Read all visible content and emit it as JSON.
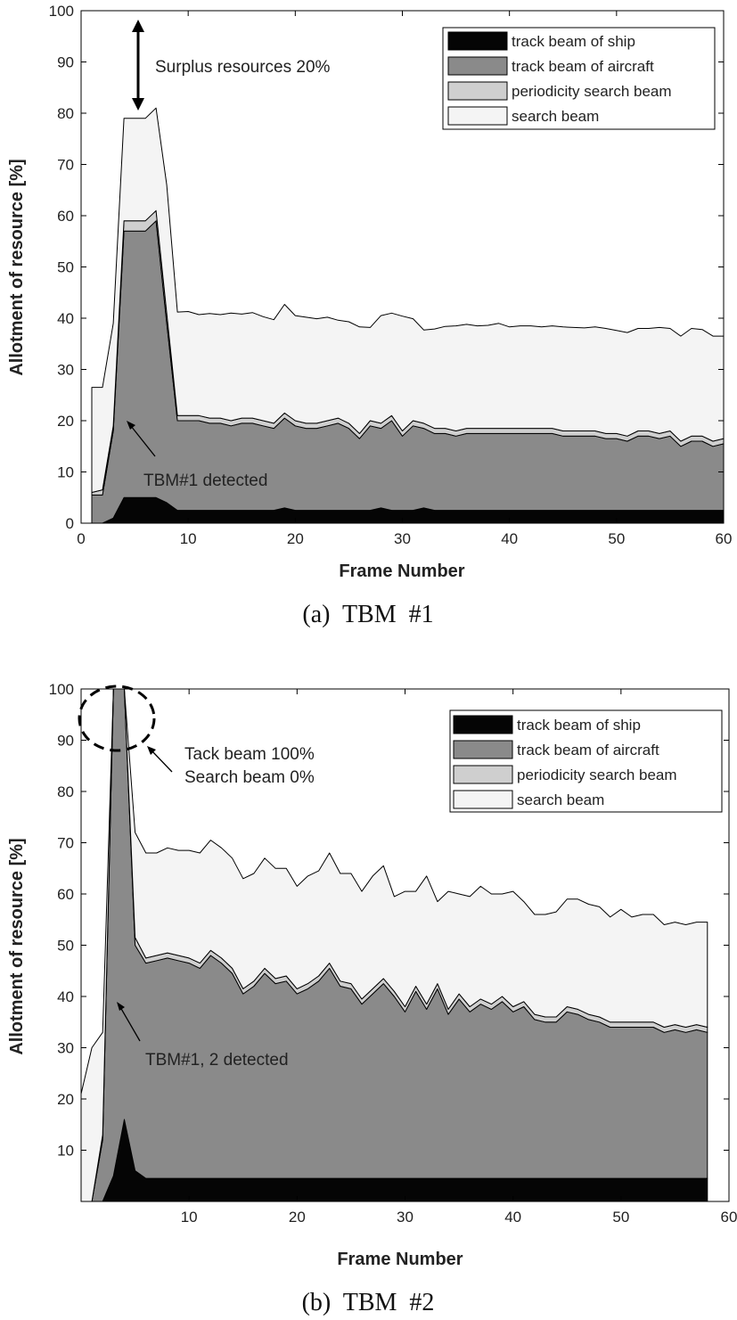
{
  "chart_data": [
    {
      "type": "area",
      "stacked": true,
      "caption": "(a)  TBM  #1",
      "xlabel": "Frame Number",
      "ylabel": "Allotment of resource [%]",
      "xlim": [
        0,
        60
      ],
      "ylim": [
        0,
        100
      ],
      "xticks": [
        0,
        10,
        20,
        30,
        40,
        50,
        60
      ],
      "yticks": [
        0,
        10,
        20,
        30,
        40,
        50,
        60,
        70,
        80,
        90,
        100
      ],
      "grid": false,
      "legend_position": "top-right",
      "x": [
        1,
        2,
        3,
        4,
        5,
        6,
        7,
        8,
        9,
        10,
        11,
        12,
        13,
        14,
        15,
        16,
        17,
        18,
        19,
        20,
        21,
        22,
        23,
        24,
        25,
        26,
        27,
        28,
        29,
        30,
        31,
        32,
        33,
        34,
        35,
        36,
        37,
        38,
        39,
        40,
        41,
        42,
        43,
        44,
        45,
        46,
        47,
        48,
        49,
        50,
        51,
        52,
        53,
        54,
        55,
        56,
        57,
        58,
        59,
        60
      ],
      "series": [
        {
          "name": "track beam of ship",
          "color": "#050505",
          "values": [
            0,
            0,
            1,
            5,
            5,
            5,
            5,
            4,
            2.5,
            2.5,
            2.5,
            2.5,
            2.5,
            2.5,
            2.5,
            2.5,
            2.5,
            2.5,
            3,
            2.5,
            2.5,
            2.5,
            2.5,
            2.5,
            2.5,
            2.5,
            2.5,
            3,
            2.5,
            2.5,
            2.5,
            3,
            2.5,
            2.5,
            2.5,
            2.5,
            2.5,
            2.5,
            2.5,
            2.5,
            2.5,
            2.5,
            2.5,
            2.5,
            2.5,
            2.5,
            2.5,
            2.5,
            2.5,
            2.5,
            2.5,
            2.5,
            2.5,
            2.5,
            2.5,
            2.5,
            2.5,
            2.5,
            2.5,
            2.5
          ]
        },
        {
          "name": "track beam of aircraft",
          "color": "#8a8a8a",
          "values": [
            5.5,
            5.5,
            17,
            52,
            52,
            52,
            54,
            35,
            17.5,
            17.5,
            17.5,
            17,
            17,
            16.5,
            17,
            17,
            16.5,
            16,
            17.5,
            16.5,
            16,
            16,
            16.5,
            17,
            16,
            14,
            16.5,
            15.5,
            17.5,
            14.5,
            16.5,
            15.5,
            15,
            15,
            14.5,
            15,
            15,
            15,
            15,
            15,
            15,
            15,
            15,
            15,
            14.5,
            14.5,
            14.5,
            14.5,
            14,
            14,
            13.5,
            14.5,
            14.5,
            14,
            14.5,
            12.5,
            13.5,
            13.5,
            12.5,
            13
          ]
        },
        {
          "name": "periodicity search beam",
          "color": "#cfcfcf",
          "values": [
            0.5,
            1,
            1,
            2,
            2,
            2,
            2,
            2,
            1,
            1,
            1,
            1,
            1,
            1,
            1,
            1,
            1,
            1,
            1,
            1,
            1,
            1,
            1,
            1,
            1,
            1,
            1,
            1,
            1,
            1,
            1,
            1,
            1,
            1,
            1,
            1,
            1,
            1,
            1,
            1,
            1,
            1,
            1,
            1,
            1,
            1,
            1,
            1,
            1,
            1,
            1,
            1,
            1,
            1,
            1,
            1,
            1,
            1,
            1,
            1
          ]
        },
        {
          "name": "search beam",
          "color": "#f4f4f4",
          "values": [
            20.5,
            20,
            20,
            20,
            20,
            20,
            20,
            25,
            20.2,
            20.3,
            19.7,
            20.4,
            20.2,
            21,
            20.3,
            20.6,
            20.3,
            20.2,
            21.2,
            20.5,
            20.7,
            20.4,
            20.2,
            19.1,
            19.8,
            20.8,
            18.2,
            21,
            20,
            22.4,
            19.9,
            18.2,
            19.4,
            19.9,
            20.5,
            20.3,
            20,
            20.1,
            20.5,
            19.8,
            20,
            20,
            19.8,
            20,
            20.3,
            20.2,
            20.1,
            20.3,
            20.5,
            20.1,
            20.2,
            20,
            20,
            20.7,
            20,
            20.5,
            21,
            20.8,
            20.5,
            20
          ]
        }
      ],
      "annotations": [
        {
          "text": "Surplus resources 20%"
        },
        {
          "text": "TBM#1 detected"
        }
      ]
    },
    {
      "type": "area",
      "stacked": true,
      "caption": "(b)  TBM  #2",
      "xlabel": "Frame Number",
      "ylabel": "Allotment of resource [%]",
      "xlim": [
        0,
        60
      ],
      "ylim": [
        0,
        100
      ],
      "xticks": [
        10,
        20,
        30,
        40,
        50,
        60
      ],
      "yticks": [
        10,
        20,
        30,
        40,
        50,
        60,
        70,
        80,
        90,
        100
      ],
      "grid": false,
      "legend_position": "top-right",
      "x": [
        0,
        1,
        2,
        3,
        4,
        5,
        6,
        7,
        8,
        9,
        10,
        11,
        12,
        13,
        14,
        15,
        16,
        17,
        18,
        19,
        20,
        21,
        22,
        23,
        24,
        25,
        26,
        27,
        28,
        29,
        30,
        31,
        32,
        33,
        34,
        35,
        36,
        37,
        38,
        39,
        40,
        41,
        42,
        43,
        44,
        45,
        46,
        47,
        48,
        49,
        50,
        51,
        52,
        53,
        54,
        55,
        56,
        57,
        58
      ],
      "series": [
        {
          "name": "track beam of ship",
          "color": "#050505",
          "values": [
            0,
            0,
            0,
            5,
            16,
            6,
            4.5,
            4.5,
            4.5,
            4.5,
            4.5,
            4.5,
            4.5,
            4.5,
            4.5,
            4.5,
            4.5,
            4.5,
            4.5,
            4.5,
            4.5,
            4.5,
            4.5,
            4.5,
            4.5,
            4.5,
            4.5,
            4.5,
            4.5,
            4.5,
            4.5,
            4.5,
            4.5,
            4.5,
            4.5,
            4.5,
            4.5,
            4.5,
            4.5,
            4.5,
            4.5,
            4.5,
            4.5,
            4.5,
            4.5,
            4.5,
            4.5,
            4.5,
            4.5,
            4.5,
            4.5,
            4.5,
            4.5,
            4.5,
            4.5,
            4.5,
            4.5,
            4.5,
            4.5
          ]
        },
        {
          "name": "track beam of aircraft",
          "color": "#8a8a8a",
          "values": [
            0,
            0,
            12,
            95,
            84,
            44,
            42,
            42.5,
            43,
            42.5,
            42,
            41,
            43.5,
            42,
            40,
            36,
            37.5,
            40,
            38,
            38.5,
            36,
            37,
            38.5,
            41,
            37.5,
            37,
            34,
            36,
            38,
            35.5,
            32.5,
            36.5,
            33,
            37,
            32,
            35,
            32.5,
            34,
            33,
            34.5,
            32.5,
            33.5,
            31,
            30.5,
            30.5,
            32.5,
            32,
            31,
            30.5,
            29.5,
            29.5,
            29.5,
            29.5,
            29.5,
            28.5,
            29,
            28.5,
            29,
            28.5
          ]
        },
        {
          "name": "periodicity search beam",
          "color": "#cfcfcf",
          "values": [
            0,
            0,
            1,
            0,
            0,
            1.5,
            1,
            1,
            1,
            1,
            1,
            1,
            1,
            1,
            1,
            1,
            1,
            1,
            1,
            1,
            1,
            1,
            1,
            1,
            1,
            1,
            1,
            1,
            1,
            1,
            1,
            1,
            1,
            1,
            1,
            1,
            1,
            1,
            1,
            1,
            1,
            1,
            1,
            1,
            1,
            1,
            1,
            1,
            1,
            1,
            1,
            1,
            1,
            1,
            1,
            1,
            1,
            1,
            1
          ]
        },
        {
          "name": "search beam",
          "color": "#f4f4f4",
          "values": [
            21,
            30,
            20,
            0,
            0,
            20.5,
            20.5,
            20,
            20.5,
            20.5,
            21,
            21.5,
            21.5,
            21.5,
            21.5,
            21.5,
            21,
            21.5,
            21.5,
            21,
            20,
            21,
            20.5,
            21.5,
            21,
            21.5,
            21,
            22,
            22,
            18.5,
            22.5,
            18.5,
            25,
            16,
            23,
            19.5,
            21.5,
            22,
            21.5,
            20,
            22.5,
            19.5,
            19.5,
            20,
            20.5,
            21,
            21.5,
            21.5,
            21.5,
            20.5,
            22,
            20.5,
            21,
            21,
            20,
            20,
            20,
            20,
            20.5
          ]
        }
      ],
      "annotations": [
        {
          "text": "Tack beam 100%"
        },
        {
          "text": "Search beam 0%"
        },
        {
          "text": "TBM#1, 2 detected"
        }
      ]
    }
  ]
}
